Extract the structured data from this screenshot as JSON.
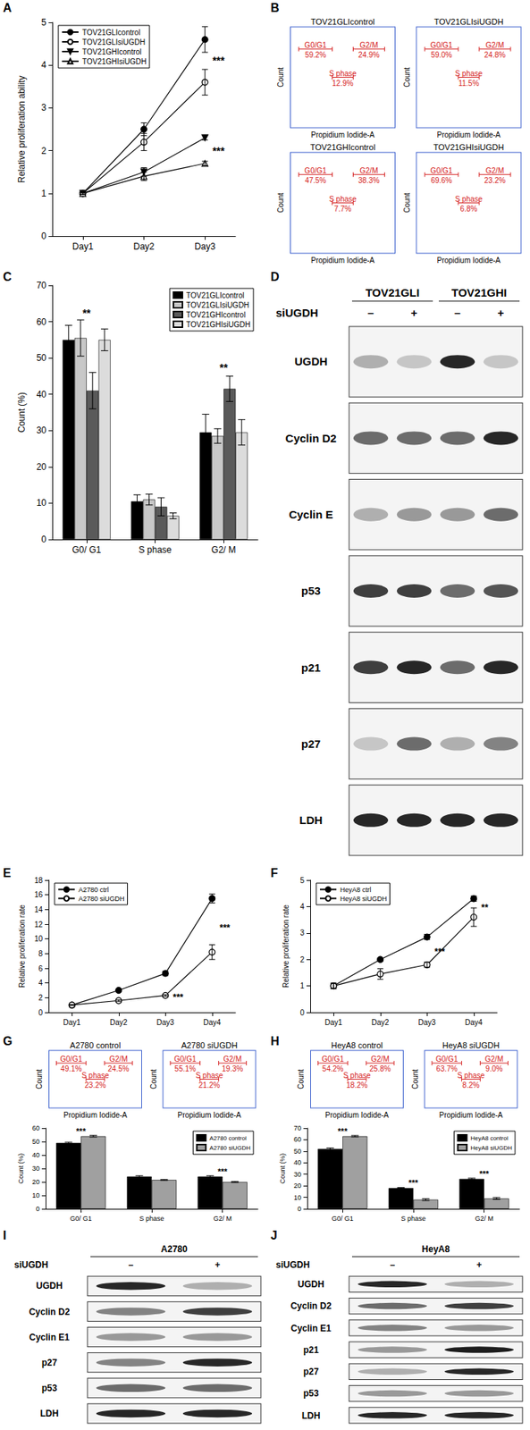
{
  "chart_data": [
    {
      "panel": "A",
      "type": "line",
      "y_label": "Relative proliferation ability",
      "categories": [
        "Day1",
        "Day2",
        "Day3"
      ],
      "ylim": [
        0,
        5
      ],
      "yticks": [
        0,
        1,
        2,
        3,
        4,
        5
      ],
      "grid": false,
      "legend": "upper left",
      "series": [
        {
          "name": "TOV21GLIcontrol",
          "color": "#000000",
          "marker": "circle",
          "values": [
            1,
            2.5,
            4.6
          ],
          "errors": [
            0.03,
            0.15,
            0.3
          ]
        },
        {
          "name": "TOV21GLIsiUGDH",
          "color": "#000000",
          "marker": "circle_open",
          "values": [
            1,
            2.2,
            3.6
          ],
          "errors": [
            0.03,
            0.2,
            0.3
          ]
        },
        {
          "name": "TOV21GHIcontrol",
          "color": "#000000",
          "marker": "triangle_down",
          "values": [
            1,
            1.5,
            2.3
          ],
          "errors": [
            0.03,
            0.1,
            0.05
          ]
        },
        {
          "name": "TOV21GHIsiUGDH",
          "color": "#000000",
          "marker": "triangle_open",
          "values": [
            1,
            1.4,
            1.7
          ],
          "errors": [
            0.03,
            0.1,
            0.05
          ]
        }
      ],
      "annotations": [
        {
          "text": "***",
          "x": "Day3",
          "y": 4.1
        },
        {
          "text": "***",
          "x": "Day3",
          "y": 2.0
        }
      ]
    },
    {
      "panel": "C",
      "type": "bar",
      "y_label": "Count (%)",
      "categories": [
        "G0/ G1",
        "S phase",
        "G2/ M"
      ],
      "ylim": [
        0,
        70
      ],
      "yticks": [
        0,
        10,
        20,
        30,
        40,
        50,
        60,
        70
      ],
      "grid": false,
      "legend": "upper right",
      "series": [
        {
          "name": "TOV21GLIcontrol",
          "color": "#000000",
          "values": [
            55,
            10.5,
            29.5
          ],
          "errors": [
            4,
            1.8,
            5
          ]
        },
        {
          "name": "TOV21GLIsiUGDH",
          "color": "#c8c8c8",
          "values": [
            55.5,
            11,
            28.5
          ],
          "errors": [
            5,
            1.5,
            2
          ]
        },
        {
          "name": "TOV21GHIcontrol",
          "color": "#5a5a5a",
          "values": [
            41,
            9,
            41.5
          ],
          "errors": [
            5,
            2.5,
            3.5
          ]
        },
        {
          "name": "TOV21GHIsiUGDH",
          "color": "#dcdcdc",
          "values": [
            55,
            6.5,
            29.5
          ],
          "errors": [
            3,
            0.8,
            3.5
          ]
        }
      ],
      "annotations": [
        {
          "text": "**",
          "x": "G0/ G1",
          "y": 61
        },
        {
          "text": "**",
          "x": "G2/ M",
          "y": 46
        }
      ]
    },
    {
      "panel": "E",
      "type": "line",
      "y_label": "Relative proliferation rate",
      "categories": [
        "Day1",
        "Day2",
        "Day3",
        "Day4"
      ],
      "ylim": [
        0,
        18
      ],
      "yticks": [
        0,
        2,
        4,
        6,
        8,
        10,
        12,
        14,
        16,
        18
      ],
      "grid": false,
      "legend": "upper left",
      "series": [
        {
          "name": "A2780 ctrl",
          "color": "#000000",
          "marker": "circle",
          "values": [
            1,
            3.0,
            5.3,
            15.5
          ],
          "errors": [
            0.05,
            0.1,
            0.3,
            0.6
          ]
        },
        {
          "name": "A2780 siUGDH",
          "color": "#000000",
          "marker": "circle_open",
          "values": [
            1,
            1.6,
            2.3,
            8.2
          ],
          "errors": [
            0.05,
            0.1,
            0.1,
            1.0
          ]
        }
      ],
      "annotations": [
        {
          "text": "***",
          "x": "Day3",
          "y": 2.0
        },
        {
          "text": "***",
          "x": "Day4",
          "y": 11.5
        }
      ]
    },
    {
      "panel": "F",
      "type": "line",
      "y_label": "Relative proliferation rate",
      "categories": [
        "Day1",
        "Day2",
        "Day3",
        "Day4"
      ],
      "ylim": [
        0,
        5
      ],
      "yticks": [
        0,
        1,
        2,
        3,
        4,
        5
      ],
      "grid": false,
      "legend": "upper left",
      "series": [
        {
          "name": "HeyA8 ctrl",
          "color": "#000000",
          "marker": "circle",
          "values": [
            1,
            2.0,
            2.85,
            4.3
          ],
          "errors": [
            0.1,
            0.05,
            0.1,
            0.1
          ]
        },
        {
          "name": "HeyA8 siUGDH",
          "color": "#000000",
          "marker": "circle_open",
          "values": [
            1,
            1.45,
            1.8,
            3.6
          ],
          "errors": [
            0.1,
            0.2,
            0.1,
            0.35
          ]
        }
      ],
      "annotations": [
        {
          "text": "***",
          "x": "Day3",
          "y": 2.3
        },
        {
          "text": "**",
          "x": "Day4",
          "y": 3.95
        }
      ]
    },
    {
      "panel": "G",
      "type": "bar",
      "y_label": "Count (%)",
      "categories": [
        "G0/ G1",
        "S phase",
        "G2/ M"
      ],
      "ylim": [
        0,
        60
      ],
      "yticks": [
        0,
        10,
        20,
        30,
        40,
        50,
        60
      ],
      "grid": false,
      "legend": "upper right",
      "series": [
        {
          "name": "A2780 control",
          "color": "#000000",
          "values": [
            49,
            24,
            24
          ],
          "errors": [
            0.5,
            0.6,
            0.6
          ]
        },
        {
          "name": "A2780 siUGDH",
          "color": "#a0a0a0",
          "values": [
            54,
            21.5,
            20
          ],
          "errors": [
            0.6,
            0.3,
            0.4
          ]
        }
      ],
      "annotations": [
        {
          "text": "***",
          "x": "G0/ G1",
          "y": 55
        },
        {
          "text": "***",
          "x": "G2/ M",
          "y": 25
        }
      ]
    },
    {
      "panel": "H",
      "type": "bar",
      "y_label": "Count (%)",
      "categories": [
        "G0/ G1",
        "S phase",
        "G2/ M"
      ],
      "ylim": [
        0,
        70
      ],
      "yticks": [
        0,
        10,
        20,
        30,
        40,
        50,
        60,
        70
      ],
      "grid": false,
      "legend": "upper right",
      "series": [
        {
          "name": "HeyA8 control",
          "color": "#000000",
          "values": [
            52,
            18,
            26
          ],
          "errors": [
            0.8,
            0.5,
            0.6
          ]
        },
        {
          "name": "HeyA8 siUGDH",
          "color": "#a0a0a0",
          "values": [
            63,
            8,
            9
          ],
          "errors": [
            0.6,
            0.8,
            0.8
          ]
        }
      ],
      "annotations": [
        {
          "text": "***",
          "x": "G0/ G1",
          "y": 64
        },
        {
          "text": "***",
          "x": "S phase",
          "y": 19
        },
        {
          "text": "***",
          "x": "G2/ M",
          "y": 27
        }
      ]
    }
  ],
  "flow_cytometry": [
    {
      "panel": "B",
      "x_label": "Propidium Iodide-A",
      "y_label": "Count",
      "plots": [
        {
          "title": "TOV21GLIcontrol",
          "gates": [
            {
              "name": "G0/G1",
              "percent_label": "59.2%"
            },
            {
              "name": "S phase",
              "percent_label": "12.9%"
            },
            {
              "name": "G2/M",
              "percent_label": "24.9%"
            }
          ]
        },
        {
          "title": "TOV21GLIsiUGDH",
          "gates": [
            {
              "name": "G0/G1",
              "percent_label": "59.0%"
            },
            {
              "name": "S phase",
              "percent_label": "11.5%"
            },
            {
              "name": "G2/M",
              "percent_label": "24.8%"
            }
          ]
        },
        {
          "title": "TOV21GHIcontrol",
          "gates": [
            {
              "name": "G0/G1",
              "percent_label": "47.5%"
            },
            {
              "name": "S phase",
              "percent_label": "7.7%"
            },
            {
              "name": "G2/M",
              "percent_label": "38.3%"
            }
          ]
        },
        {
          "title": "TOV21GHIsiUGDH",
          "gates": [
            {
              "name": "G0/G1",
              "percent_label": "69.6%"
            },
            {
              "name": "S phase",
              "percent_label": "6.8%"
            },
            {
              "name": "G2/M",
              "percent_label": "23.2%"
            }
          ]
        }
      ]
    },
    {
      "x_label": "Propidium Iodide-A",
      "y_label": "Count",
      "plots": [
        {
          "title": "A2780 control",
          "gates": [
            {
              "name": "G0/G1",
              "percent_label": "49.1%"
            },
            {
              "name": "S phase",
              "percent_label": "23.2%"
            },
            {
              "name": "G2/M",
              "percent_label": "24.5%"
            }
          ]
        },
        {
          "title": "A2780 siUGDH",
          "gates": [
            {
              "name": "G0/G1",
              "percent_label": "55.1%"
            },
            {
              "name": "S phase",
              "percent_label": "21.2%"
            },
            {
              "name": "G2/M",
              "percent_label": "19.3%"
            }
          ]
        }
      ]
    },
    {
      "x_label": "Propidium Iodide-A",
      "y_label": "Count",
      "plots": [
        {
          "title": "HeyA8 control",
          "gates": [
            {
              "name": "G0/G1",
              "percent_label": "54.2%"
            },
            {
              "name": "S phase",
              "percent_label": "18.2%"
            },
            {
              "name": "G2/M",
              "percent_label": "25.8%"
            }
          ]
        },
        {
          "title": "HeyA8 siUGDH",
          "gates": [
            {
              "name": "G0/G1",
              "percent_label": "63.7%"
            },
            {
              "name": "S phase",
              "percent_label": "8.2%"
            },
            {
              "name": "G2/M",
              "percent_label": "9.0%"
            }
          ]
        }
      ]
    }
  ],
  "western_blots": [
    {
      "panel": "D",
      "groups": [
        "TOV21GLI",
        "TOV21GHI"
      ],
      "treatment": "siUGDH",
      "lanes": [
        "–",
        "+",
        "–",
        "+"
      ],
      "rows": [
        {
          "label": "UGDH",
          "band_intensity": [
            0.3,
            0.2,
            0.9,
            0.2
          ]
        },
        {
          "label": "Cyclin D2",
          "band_intensity": [
            0.6,
            0.6,
            0.6,
            0.9
          ]
        },
        {
          "label": "Cyclin E",
          "band_intensity": [
            0.3,
            0.4,
            0.4,
            0.6
          ]
        },
        {
          "label": "p53",
          "band_intensity": [
            0.8,
            0.8,
            0.6,
            0.7
          ]
        },
        {
          "label": "p21",
          "band_intensity": [
            0.8,
            0.9,
            0.6,
            0.9
          ]
        },
        {
          "label": "p27",
          "band_intensity": [
            0.2,
            0.6,
            0.3,
            0.5
          ]
        },
        {
          "label": "LDH",
          "band_intensity": [
            0.9,
            0.9,
            0.9,
            0.9
          ]
        }
      ]
    },
    {
      "panel": "I",
      "groups": [
        "A2780"
      ],
      "treatment": "siUGDH",
      "lanes": [
        "–",
        "+"
      ],
      "rows": [
        {
          "label": "UGDH",
          "band_intensity": [
            0.9,
            0.3
          ]
        },
        {
          "label": "Cyclin D2",
          "band_intensity": [
            0.5,
            0.8
          ]
        },
        {
          "label": "Cyclin E1",
          "band_intensity": [
            0.4,
            0.4
          ]
        },
        {
          "label": "p27",
          "band_intensity": [
            0.5,
            0.9
          ]
        },
        {
          "label": "p53",
          "band_intensity": [
            0.6,
            0.6
          ]
        },
        {
          "label": "LDH",
          "band_intensity": [
            0.9,
            0.9
          ]
        }
      ]
    },
    {
      "panel": "J",
      "groups": [
        "HeyA8"
      ],
      "treatment": "siUGDH",
      "lanes": [
        "–",
        "+"
      ],
      "rows": [
        {
          "label": "UGDH",
          "band_intensity": [
            0.9,
            0.3
          ]
        },
        {
          "label": "Cyclin D2",
          "band_intensity": [
            0.6,
            0.8
          ]
        },
        {
          "label": "Cyclin E1",
          "band_intensity": [
            0.5,
            0.4
          ]
        },
        {
          "label": "p21",
          "band_intensity": [
            0.4,
            0.95
          ]
        },
        {
          "label": "p27",
          "band_intensity": [
            0.3,
            0.9
          ]
        },
        {
          "label": "p53",
          "band_intensity": [
            0.4,
            0.4
          ]
        },
        {
          "label": "LDH",
          "band_intensity": [
            0.9,
            0.9
          ]
        }
      ]
    }
  ]
}
